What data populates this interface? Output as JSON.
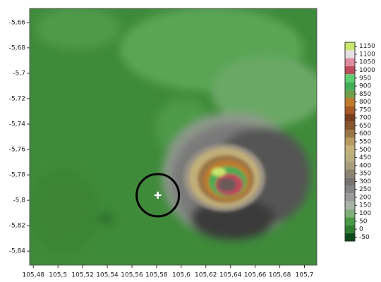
{
  "chart_data": {
    "type": "heatmap",
    "xlim": [
      105.477,
      105.71
    ],
    "ylim": [
      -5.851,
      -5.649
    ],
    "xticks": [
      {
        "value": 105.48,
        "label": "105,48"
      },
      {
        "value": 105.5,
        "label": "105,5"
      },
      {
        "value": 105.52,
        "label": "105,52"
      },
      {
        "value": 105.54,
        "label": "105,54"
      },
      {
        "value": 105.56,
        "label": "105,56"
      },
      {
        "value": 105.58,
        "label": "105,58"
      },
      {
        "value": 105.6,
        "label": "105,6"
      },
      {
        "value": 105.62,
        "label": "105,62"
      },
      {
        "value": 105.64,
        "label": "105,64"
      },
      {
        "value": 105.66,
        "label": "105,66"
      },
      {
        "value": 105.68,
        "label": "105,68"
      },
      {
        "value": 105.7,
        "label": "105,7"
      }
    ],
    "yticks": [
      {
        "value": -5.66,
        "label": "-5,66"
      },
      {
        "value": -5.68,
        "label": "-5,68"
      },
      {
        "value": -5.7,
        "label": "-5,7"
      },
      {
        "value": -5.72,
        "label": "-5,72"
      },
      {
        "value": -5.74,
        "label": "-5,74"
      },
      {
        "value": -5.76,
        "label": "-5,76"
      },
      {
        "value": -5.78,
        "label": "-5,78"
      },
      {
        "value": -5.8,
        "label": "-5,8"
      },
      {
        "value": -5.82,
        "label": "-5,82"
      },
      {
        "value": -5.84,
        "label": "-5,84"
      }
    ],
    "marker": {
      "x": 105.581,
      "y": -5.796
    },
    "colorbar": {
      "lim": [
        -75,
        1175
      ],
      "ticks": [
        -50,
        0,
        50,
        100,
        150,
        200,
        250,
        300,
        350,
        400,
        450,
        500,
        550,
        600,
        650,
        700,
        750,
        800,
        850,
        900,
        950,
        1000,
        1050,
        1100,
        1150
      ],
      "colors": [
        "#0d4a1a",
        "#2f7d2f",
        "#4a9a45",
        "#7fae7a",
        "#a8b4a6",
        "#9a9a9a",
        "#858585",
        "#767370",
        "#8d8470",
        "#a89e7e",
        "#b9ad7e",
        "#c3b178",
        "#b89a5e",
        "#9a7444",
        "#86552c",
        "#7a3e1e",
        "#a85a22",
        "#c17a2a",
        "#6ea04a",
        "#3fae55",
        "#5cd070",
        "#c04a5a",
        "#e08a9e",
        "#e6e0e6",
        "#c9e86a"
      ]
    }
  }
}
